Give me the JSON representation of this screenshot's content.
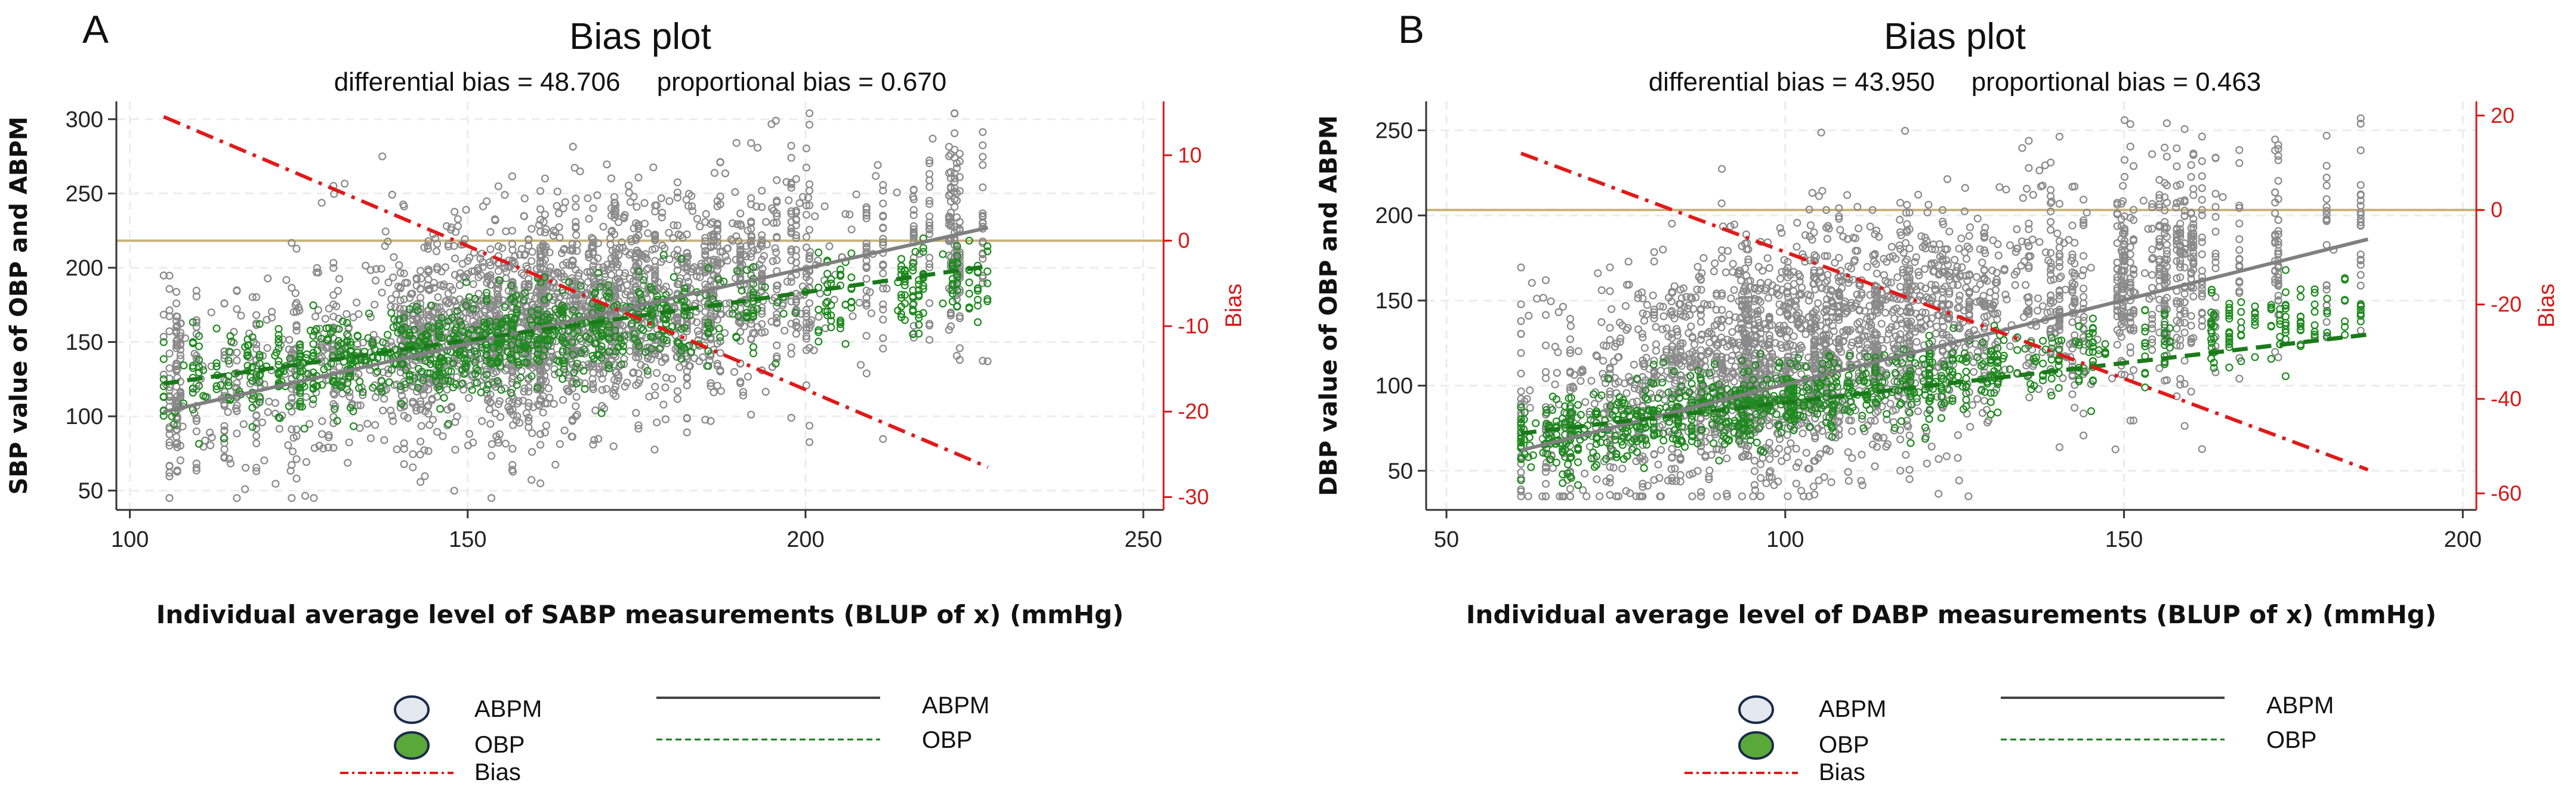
{
  "chart_data": [
    {
      "panel": "A",
      "type": "scatter",
      "title": "Bias plot",
      "subtitle": "differential bias = 48.706     proportional bias = 0.670",
      "xlabel": "Individual average level of SABP measurements (BLUP of x) (mmHg)",
      "ylabel": "SBP value of OBP and ABPM",
      "y2label": "Bias",
      "xlim": [
        98,
        253
      ],
      "ylim": [
        37,
        312
      ],
      "y2lim": [
        -31.5,
        16.3
      ],
      "xticks": [
        100,
        150,
        200,
        250
      ],
      "yticks": [
        50,
        100,
        150,
        200,
        250,
        300
      ],
      "y2ticks": [
        -30,
        -20,
        -10,
        0,
        10
      ],
      "zero_reference_y2": 0,
      "series": [
        {
          "name": "ABPM",
          "kind": "points",
          "color": "#8a8a8a",
          "x_range": [
            105,
            227
          ],
          "center_x": 160,
          "center_y": 165,
          "sd": 45,
          "count": 3000
        },
        {
          "name": "OBP",
          "kind": "points",
          "color": "#1f8a1f",
          "x_range": [
            105,
            227
          ],
          "center_x": 150,
          "center_y": 148,
          "sd": 20,
          "count": 1000
        },
        {
          "name": "ABPM",
          "kind": "line",
          "color": "#808080",
          "x": [
            105,
            227
          ],
          "y": [
            103,
            227
          ]
        },
        {
          "name": "OBP",
          "kind": "line",
          "color": "#1a7a1a",
          "x": [
            105,
            227
          ],
          "y": [
            122,
            201
          ]
        },
        {
          "name": "Bias",
          "kind": "line",
          "axis": "y2",
          "color": "#e01a1a",
          "x": [
            105,
            227
          ],
          "y": [
            14.5,
            -26.5
          ]
        }
      ]
    },
    {
      "panel": "B",
      "type": "scatter",
      "title": "Bias plot",
      "subtitle": "differential bias = 43.950     proportional bias = 0.463",
      "xlabel": "Individual average level of DABP measurements (BLUP of x) (mmHg)",
      "ylabel": "DBP value of OBP and ABPM",
      "y2label": "Bias",
      "xlim": [
        47,
        202
      ],
      "ylim": [
        27,
        267
      ],
      "y2lim": [
        -63.5,
        23
      ],
      "xticks": [
        50,
        100,
        150,
        200
      ],
      "yticks": [
        50,
        100,
        150,
        200,
        250
      ],
      "y2ticks": [
        -60,
        -40,
        -20,
        0,
        20
      ],
      "zero_reference_y2": 0,
      "series": [
        {
          "name": "ABPM",
          "kind": "points",
          "color": "#8a8a8a",
          "x_range": [
            61,
            186
          ],
          "center_x": 103,
          "center_y": 120,
          "sd": 42,
          "count": 3000
        },
        {
          "name": "OBP",
          "kind": "points",
          "color": "#1f8a1f",
          "x_range": [
            61,
            186
          ],
          "center_x": 97,
          "center_y": 90,
          "sd": 14,
          "count": 1000
        },
        {
          "name": "ABPM",
          "kind": "line",
          "color": "#808080",
          "x": [
            61,
            186
          ],
          "y": [
            62,
            186
          ]
        },
        {
          "name": "OBP",
          "kind": "line",
          "color": "#1a7a1a",
          "x": [
            61,
            186
          ],
          "y": [
            72,
            130
          ]
        },
        {
          "name": "Bias",
          "kind": "line",
          "axis": "y2",
          "color": "#e01a1a",
          "x": [
            61,
            186
          ],
          "y": [
            12,
            -55
          ]
        }
      ]
    }
  ],
  "legend": {
    "abpm_marker_label": "ABPM",
    "obp_marker_label": "OBP",
    "bias_label": "Bias",
    "abpm_line_label": "ABPM",
    "obp_line_label": "OBP"
  },
  "colors": {
    "abpm_points": "#8a8a8a",
    "obp_points": "#1f8a1f",
    "abpm_line": "#808080",
    "obp_line": "#1a7a1a",
    "bias_line": "#e01a1a",
    "zero_line": "#c9b27c",
    "right_axis": "#d81818"
  }
}
